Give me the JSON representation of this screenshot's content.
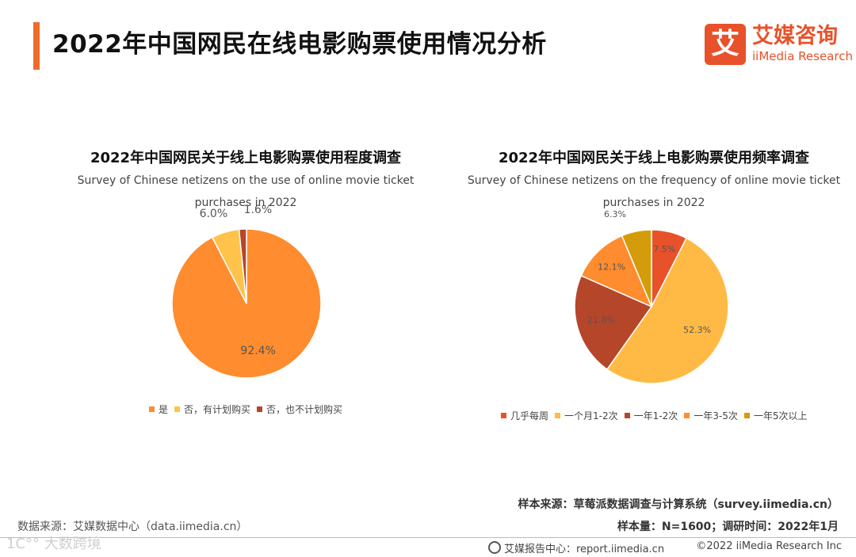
{
  "header": {
    "title": "2022年中国网民在线电影购票使用情况分析"
  },
  "logo": {
    "mark": "艾",
    "cn": "艾媒咨询",
    "en": "iiMedia Research"
  },
  "chart_data": [
    {
      "type": "pie",
      "title": "2022年中国网民关于线上电影购票使用程度调查",
      "subtitle_line1": "Survey of Chinese netizens on the use of online movie ticket",
      "subtitle_line2": "purchases in 2022",
      "categories": [
        "是",
        "否，有计划购买",
        "否，也不计划购买"
      ],
      "values": [
        92.4,
        6.0,
        1.6
      ],
      "value_labels": [
        "92.4%",
        "6.0%",
        "1.6%"
      ],
      "colors": [
        "#FF8C2E",
        "#FFC24A",
        "#B5462A"
      ],
      "legend_position": "bottom"
    },
    {
      "type": "pie",
      "title": "2022年中国网民关于线上电影购票使用频率调查",
      "subtitle_line1": "Survey of Chinese netizens on the frequency of online movie ticket",
      "subtitle_line2": "purchases in 2022",
      "categories": [
        "几乎每周",
        "一个月1-2次",
        "一年1-2次",
        "一年3-5次",
        "一年5次以上"
      ],
      "values": [
        7.5,
        52.3,
        21.8,
        12.1,
        6.3
      ],
      "value_labels": [
        "7.5%",
        "52.3%",
        "21.8%",
        "12.1%",
        "6.3%"
      ],
      "colors": [
        "#E8522A",
        "#FFBA45",
        "#B5462A",
        "#FF8C2E",
        "#D49B0A"
      ],
      "legend_position": "bottom"
    }
  ],
  "footer": {
    "source_left": "数据来源：艾媒数据中心（data.iimedia.cn）",
    "sample_source": "样本来源：草莓派数据调查与计算系统（survey.iimedia.cn）",
    "sample_size": "样本量：N=1600；调研时间：2022年1月",
    "report_center": "艾媒报告中心：report.iimedia.cn",
    "copyright": "©2022  iiMedia Research  Inc",
    "watermark": "1C°° 大数跨境"
  }
}
